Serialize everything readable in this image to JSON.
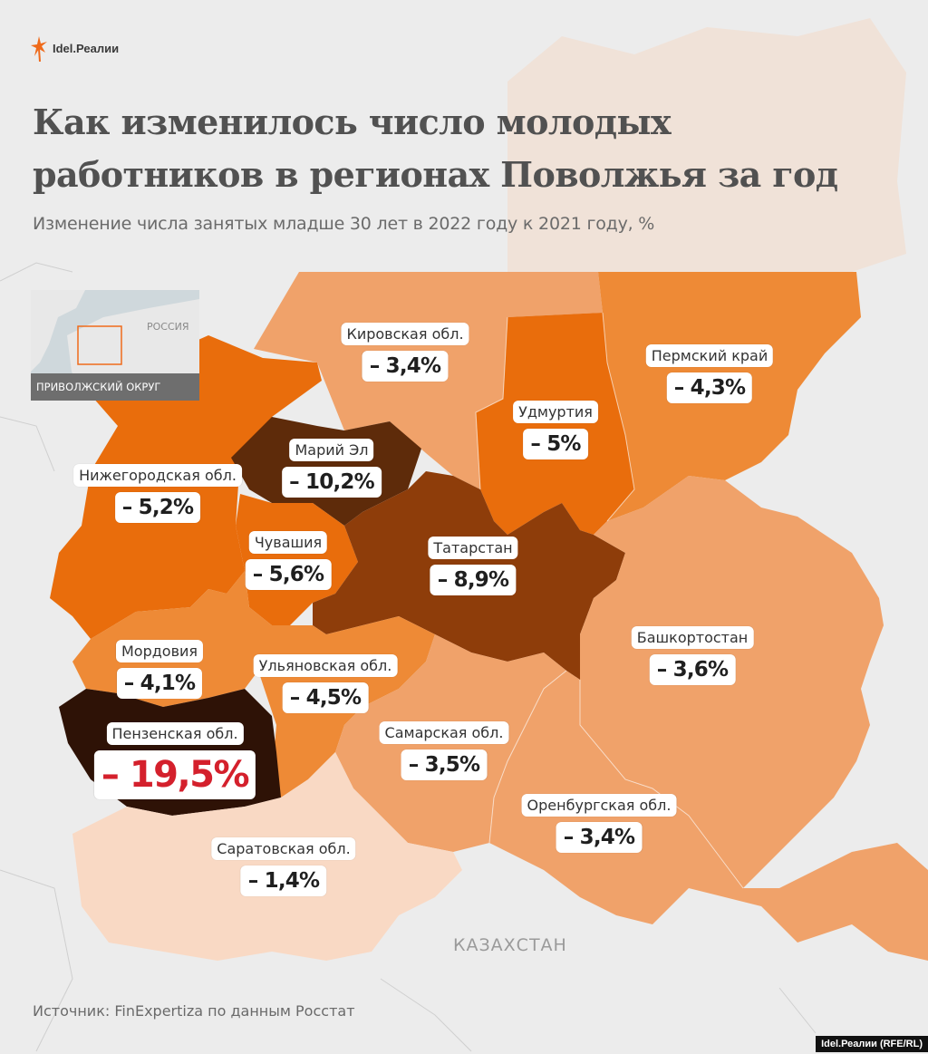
{
  "header": {
    "logo_text": "Idel.Реалии",
    "title_line1": "Как изменилось число молодых",
    "title_line2": "работников в регионах Поволжья за год",
    "subtitle": "Изменение числа занятых младше 30 лет в 2022 году к 2021 году, %"
  },
  "inset": {
    "country_label": "РОССИЯ",
    "caption": "ПРИВОЛЖСКИЙ ОКРУГ"
  },
  "regions": [
    {
      "name": "Кировская обл.",
      "value": "– 3,4%",
      "change_pct": -3.4,
      "color": "#f0a26a"
    },
    {
      "name": "Удмуртия",
      "value": "– 5%",
      "change_pct": -5.0,
      "color": "#e96d0c"
    },
    {
      "name": "Пермский край",
      "value": "– 4,3%",
      "change_pct": -4.3,
      "color": "#ee8a36"
    },
    {
      "name": "Марий Эл",
      "value": "– 10,2%",
      "change_pct": -10.2,
      "color": "#5e2b0a"
    },
    {
      "name": "Нижегородская обл.",
      "value": "– 5,2%",
      "change_pct": -5.2,
      "color": "#e96d0c"
    },
    {
      "name": "Чувашия",
      "value": "– 5,6%",
      "change_pct": -5.6,
      "color": "#e96d0c"
    },
    {
      "name": "Татарстан",
      "value": "– 8,9%",
      "change_pct": -8.9,
      "color": "#8e3d0a"
    },
    {
      "name": "Башкортостан",
      "value": "– 3,6%",
      "change_pct": -3.6,
      "color": "#f0a26a"
    },
    {
      "name": "Мордовия",
      "value": "– 4,1%",
      "change_pct": -4.1,
      "color": "#ee8a36"
    },
    {
      "name": "Ульяновская обл.",
      "value": "– 4,5%",
      "change_pct": -4.5,
      "color": "#ee8a36"
    },
    {
      "name": "Пензенская обл.",
      "value": "– 19,5%",
      "change_pct": -19.5,
      "color": "#2e1206"
    },
    {
      "name": "Самарская обл.",
      "value": "– 3,5%",
      "change_pct": -3.5,
      "color": "#f0a26a"
    },
    {
      "name": "Оренбургская обл.",
      "value": "– 3,4%",
      "change_pct": -3.4,
      "color": "#f0a26a"
    },
    {
      "name": "Саратовская обл.",
      "value": "– 1,4%",
      "change_pct": -1.4,
      "color": "#f9d9c4"
    }
  ],
  "highlight_color": "#d4202c",
  "country_label": "КАЗАХСТАН",
  "source": "Источник: FinExpertiza по данным Росстат",
  "credit": "Idel.Реалии (RFE/RL)"
}
